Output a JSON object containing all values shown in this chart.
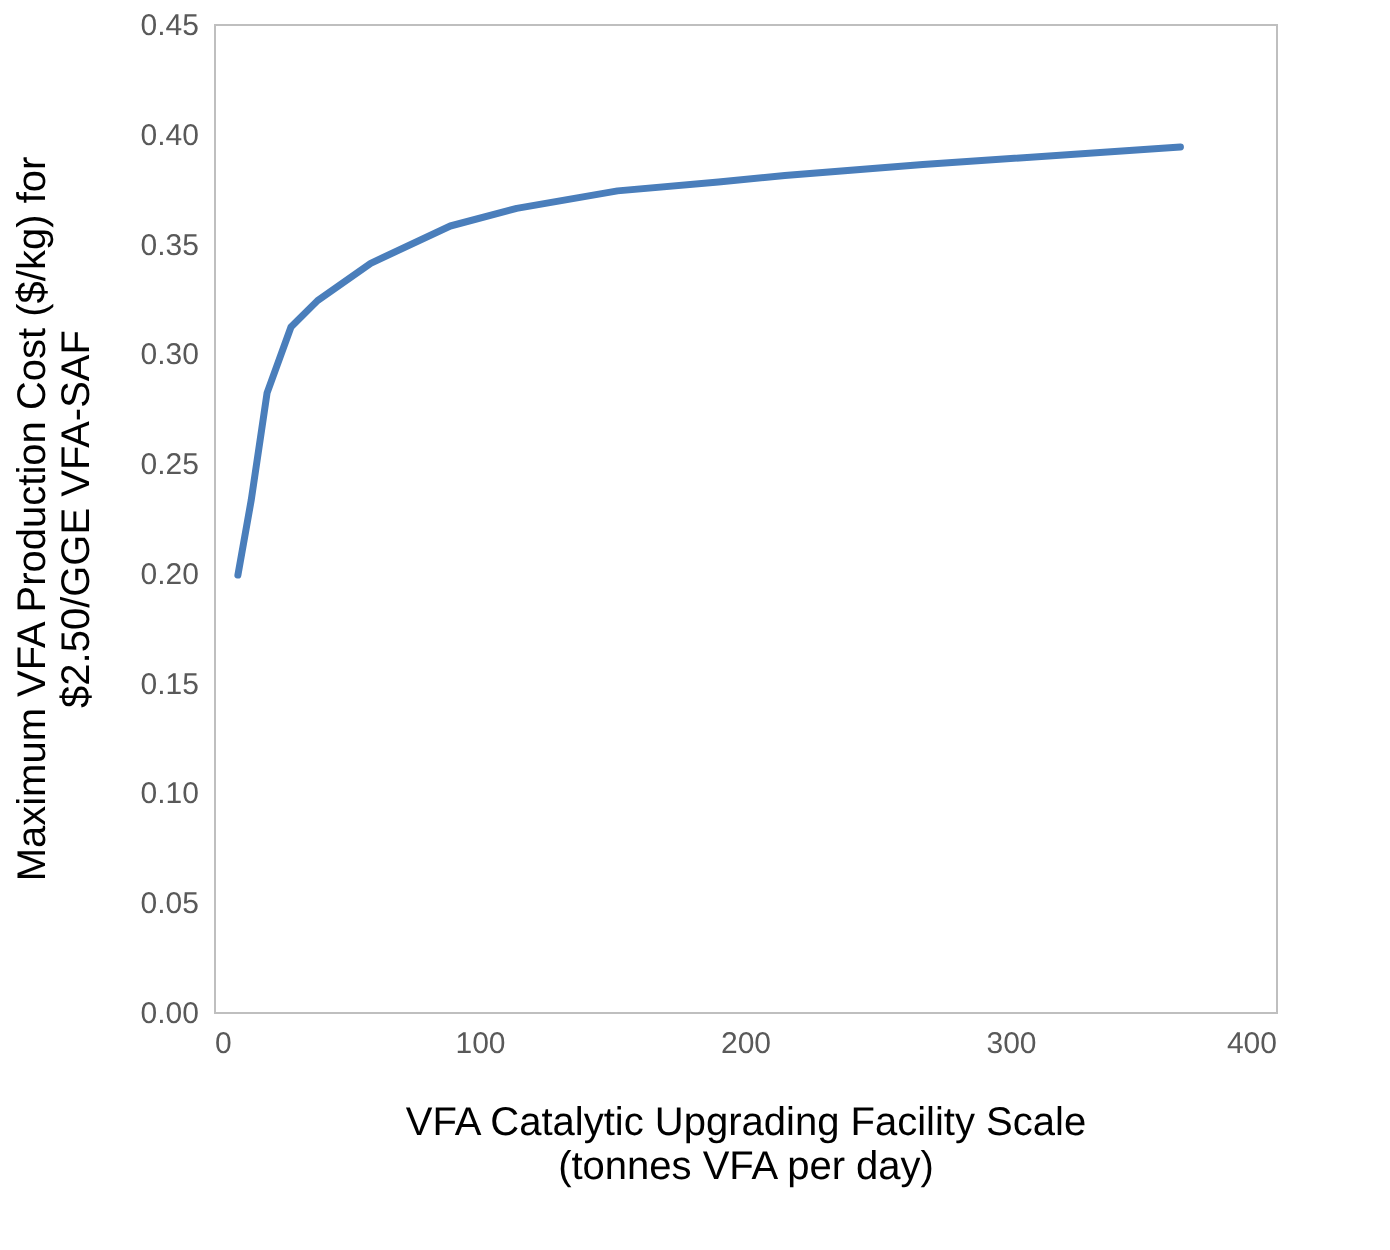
{
  "chart_data": {
    "type": "line",
    "xlabel": "VFA Catalytic Upgrading Facility Scale\n(tonnes VFA per day)",
    "ylabel": "Maximum VFA Production Cost ($/kg) for\n$2.50/GGE VFA-SAF",
    "x": [
      9,
      14,
      20,
      29,
      39,
      59,
      89,
      114,
      152,
      190,
      215,
      267,
      364
    ],
    "series": [
      {
        "color": "#4a7ebb",
        "values": [
          0.199,
          0.233,
          0.282,
          0.312,
          0.324,
          0.341,
          0.358,
          0.366,
          0.374,
          0.378,
          0.381,
          0.386,
          0.394
        ]
      }
    ],
    "xlim": [
      0,
      400
    ],
    "xticks": [
      0,
      100,
      200,
      300,
      400
    ],
    "ylim": [
      0,
      0.45
    ],
    "yticks": [
      {
        "value": 0,
        "label": "0.00"
      },
      {
        "value": 0.05,
        "label": "0.05"
      },
      {
        "value": 0.1,
        "label": "0.10"
      },
      {
        "value": 0.15,
        "label": "0.15"
      },
      {
        "value": 0.2,
        "label": "0.20"
      },
      {
        "value": 0.25,
        "label": "0.25"
      },
      {
        "value": 0.3,
        "label": "0.30"
      },
      {
        "value": 0.35,
        "label": "0.35"
      },
      {
        "value": 0.4,
        "label": "0.40"
      },
      {
        "value": 0.45,
        "label": "0.45"
      }
    ],
    "grid": false,
    "legend": false,
    "marker": "none",
    "line_style": "solid"
  }
}
